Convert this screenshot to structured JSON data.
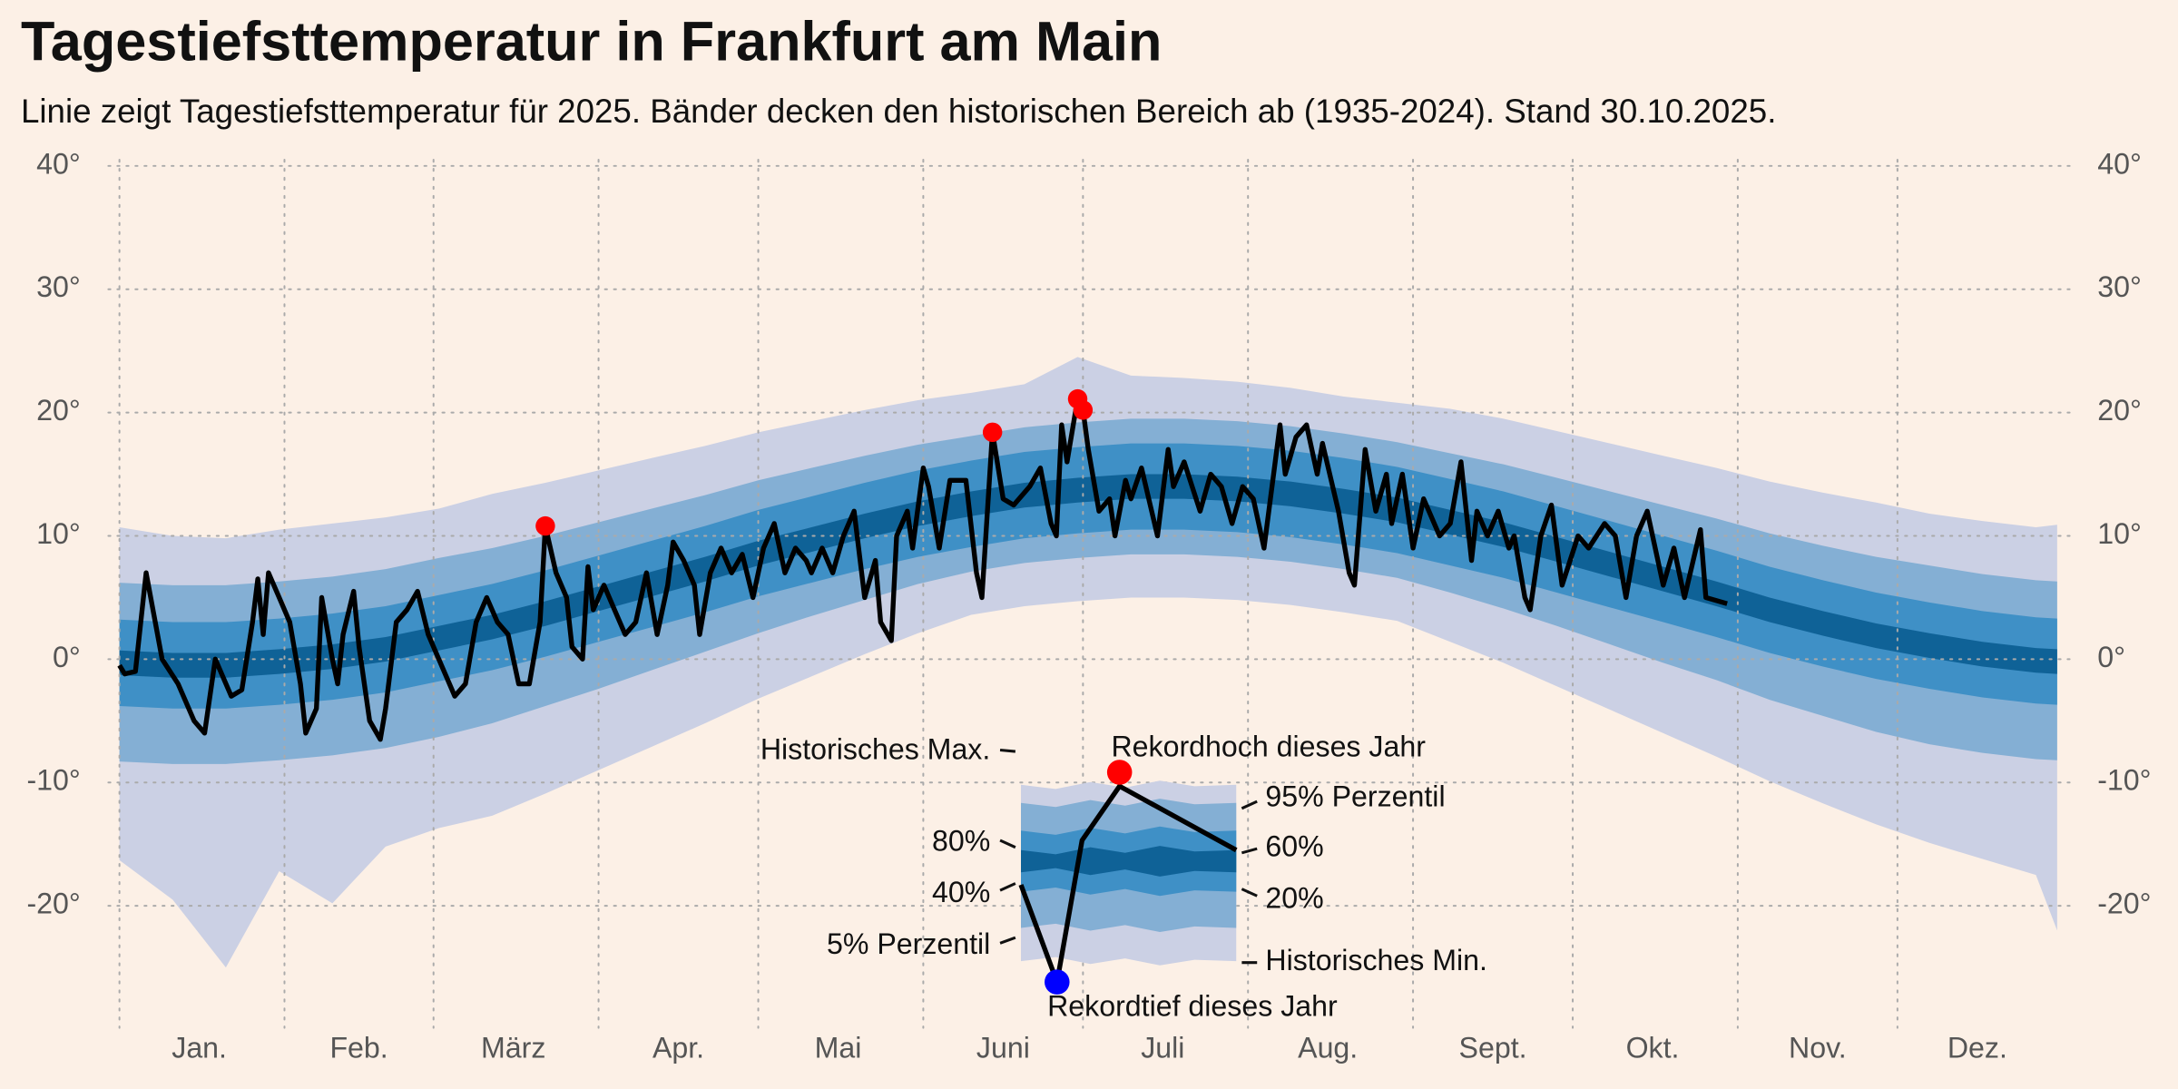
{
  "chart_data": {
    "type": "line",
    "title": "Tagestiefsttemperatur in Frankfurt am Main",
    "subtitle": "Linie zeigt Tagestiefsttemperatur für 2025. Bänder decken den historischen Bereich ab (1935-2024). Stand 30.10.2025.",
    "background": "#fcf0e6",
    "xlim": [
      1,
      365
    ],
    "ylim": [
      -29,
      40.5
    ],
    "xticks": [
      {
        "value": 16,
        "label": "Jan."
      },
      {
        "value": 46,
        "label": "Feb."
      },
      {
        "value": 75,
        "label": "März"
      },
      {
        "value": 106,
        "label": "Apr."
      },
      {
        "value": 136,
        "label": "Mai"
      },
      {
        "value": 167,
        "label": "Juni"
      },
      {
        "value": 197,
        "label": "Juli"
      },
      {
        "value": 228,
        "label": "Aug."
      },
      {
        "value": 259,
        "label": "Sept."
      },
      {
        "value": 289,
        "label": "Okt."
      },
      {
        "value": 320,
        "label": "Nov."
      },
      {
        "value": 350,
        "label": "Dez."
      }
    ],
    "x_grid": [
      1,
      32,
      60,
      91,
      121,
      152,
      182,
      213,
      244,
      274,
      305,
      335
    ],
    "yticks": [
      {
        "value": -20,
        "label": "-20°"
      },
      {
        "value": -10,
        "label": "-10°"
      },
      {
        "value": 0,
        "label": "0°"
      },
      {
        "value": 10,
        "label": "10°"
      },
      {
        "value": 20,
        "label": "20°"
      },
      {
        "value": 30,
        "label": "30°"
      },
      {
        "value": 40,
        "label": "40°"
      }
    ],
    "grid": true,
    "band_x": [
      1,
      11,
      21,
      31,
      41,
      51,
      61,
      71,
      81,
      91,
      101,
      111,
      121,
      131,
      141,
      151,
      161,
      171,
      181,
      191,
      201,
      211,
      221,
      231,
      241,
      251,
      261,
      271,
      281,
      291,
      301,
      311,
      321,
      331,
      341,
      351,
      361,
      365
    ],
    "bands": [
      {
        "color": "#cbd0e4",
        "lower": [
          -16.3,
          -19.5,
          -25.0,
          -17.2,
          -19.8,
          -15.2,
          -13.7,
          -12.7,
          -10.9,
          -9.0,
          -7.1,
          -5.2,
          -3.2,
          -1.4,
          0.4,
          2.1,
          3.6,
          4.3,
          4.7,
          5.0,
          5.0,
          4.8,
          4.4,
          3.8,
          3.1,
          1.4,
          -0.3,
          -2.2,
          -4.1,
          -6.0,
          -7.9,
          -9.9,
          -11.7,
          -13.4,
          -14.9,
          -16.2,
          -17.5,
          -22.0
        ],
        "upper": [
          10.7,
          10.0,
          9.8,
          10.5,
          11.0,
          11.5,
          12.2,
          13.4,
          14.3,
          15.3,
          16.3,
          17.3,
          18.4,
          19.3,
          20.2,
          21.0,
          21.6,
          22.3,
          24.5,
          23.0,
          22.8,
          22.5,
          22.0,
          21.3,
          20.8,
          20.3,
          19.5,
          18.5,
          17.5,
          16.5,
          15.5,
          14.4,
          13.5,
          12.7,
          11.8,
          11.2,
          10.7,
          10.9
        ]
      },
      {
        "color": "#84afd4",
        "lower": [
          -8.3,
          -8.5,
          -8.5,
          -8.2,
          -7.8,
          -7.2,
          -6.3,
          -5.2,
          -3.8,
          -2.4,
          -0.9,
          0.6,
          2.1,
          3.5,
          4.8,
          6.1,
          7.1,
          7.8,
          8.2,
          8.5,
          8.5,
          8.3,
          7.9,
          7.3,
          6.6,
          5.4,
          4.1,
          2.7,
          1.2,
          -0.3,
          -1.7,
          -3.3,
          -4.6,
          -5.9,
          -6.9,
          -7.6,
          -8.1,
          -8.2
        ],
        "upper": [
          6.2,
          6.0,
          6.0,
          6.3,
          6.7,
          7.3,
          8.2,
          9.0,
          10.0,
          11.1,
          12.2,
          13.3,
          14.5,
          15.5,
          16.5,
          17.4,
          18.1,
          18.8,
          19.2,
          19.5,
          19.5,
          19.3,
          18.9,
          18.3,
          17.6,
          16.7,
          15.8,
          14.7,
          13.6,
          12.5,
          11.4,
          10.2,
          9.2,
          8.3,
          7.6,
          6.9,
          6.4,
          6.3
        ]
      },
      {
        "color": "#3f90c6",
        "lower": [
          -3.8,
          -4.0,
          -4.0,
          -3.7,
          -3.3,
          -2.7,
          -1.8,
          -0.9,
          0.2,
          1.4,
          2.6,
          3.8,
          5.1,
          6.2,
          7.3,
          8.3,
          9.1,
          9.8,
          10.2,
          10.5,
          10.5,
          10.3,
          9.9,
          9.3,
          8.6,
          7.6,
          6.6,
          5.4,
          4.2,
          3.0,
          1.8,
          0.5,
          -0.6,
          -1.6,
          -2.4,
          -3.1,
          -3.6,
          -3.7
        ],
        "upper": [
          3.2,
          3.0,
          3.0,
          3.3,
          3.7,
          4.3,
          5.2,
          6.1,
          7.2,
          8.4,
          9.6,
          10.8,
          12.1,
          13.2,
          14.3,
          15.3,
          16.1,
          16.8,
          17.2,
          17.5,
          17.5,
          17.3,
          16.9,
          16.3,
          15.6,
          14.6,
          13.6,
          12.4,
          11.2,
          10.0,
          8.8,
          7.5,
          6.4,
          5.4,
          4.6,
          3.9,
          3.4,
          3.3
        ]
      },
      {
        "color": "#0f6297",
        "lower": [
          -1.3,
          -1.5,
          -1.5,
          -1.2,
          -0.8,
          -0.2,
          0.7,
          1.6,
          2.7,
          3.9,
          5.1,
          6.3,
          7.6,
          8.7,
          9.8,
          10.8,
          11.6,
          12.3,
          12.7,
          13.0,
          13.0,
          12.8,
          12.4,
          11.8,
          11.1,
          10.1,
          9.1,
          7.9,
          6.7,
          5.5,
          4.3,
          3.0,
          1.9,
          0.9,
          0.1,
          -0.6,
          -1.1,
          -1.2
        ],
        "upper": [
          0.7,
          0.5,
          0.5,
          0.8,
          1.2,
          1.8,
          2.7,
          3.6,
          4.7,
          5.9,
          7.1,
          8.3,
          9.6,
          10.7,
          11.8,
          12.8,
          13.6,
          14.3,
          14.7,
          15.0,
          15.0,
          14.8,
          14.4,
          13.8,
          13.1,
          12.1,
          11.1,
          9.9,
          8.7,
          7.5,
          6.3,
          5.0,
          3.9,
          2.9,
          2.1,
          1.4,
          0.9,
          0.8
        ]
      }
    ],
    "line": {
      "color": "#000000",
      "x": [
        1,
        2,
        4,
        6,
        9,
        12,
        15,
        17,
        19,
        22,
        24,
        26,
        27,
        28,
        29,
        31,
        33,
        35,
        36,
        38,
        39,
        41,
        42,
        43,
        45,
        46,
        48,
        50,
        51,
        53,
        55,
        57,
        59,
        61,
        64,
        66,
        68,
        70,
        72,
        74,
        76,
        78,
        80,
        81,
        83,
        85,
        86,
        88,
        89,
        90,
        92,
        94,
        96,
        98,
        100,
        102,
        104,
        105,
        107,
        109,
        110,
        112,
        114,
        116,
        118,
        120,
        122,
        124,
        126,
        128,
        130,
        131,
        133,
        135,
        137,
        139,
        141,
        143,
        144,
        146,
        147,
        149,
        150,
        152,
        153,
        155,
        157,
        160,
        162,
        163,
        165,
        167,
        169,
        172,
        174,
        176,
        177,
        178,
        179,
        181,
        182,
        183,
        185,
        187,
        188,
        190,
        191,
        193,
        196,
        198,
        199,
        201,
        204,
        206,
        208,
        210,
        212,
        214,
        216,
        219,
        220,
        222,
        224,
        226,
        227,
        230,
        232,
        233,
        235,
        237,
        239,
        240,
        242,
        244,
        246,
        249,
        251,
        253,
        255,
        256,
        258,
        260,
        262,
        263,
        265,
        266,
        268,
        270,
        272,
        275,
        277,
        280,
        282,
        284,
        286,
        288,
        291,
        293,
        295,
        298,
        299,
        303
      ],
      "values": [
        -0.5,
        -1.2,
        -1,
        7,
        0,
        -2,
        -5,
        -6,
        0,
        -3,
        -2.5,
        3,
        6.5,
        2,
        7,
        5,
        3,
        -2,
        -6,
        -4,
        5,
        0,
        -2,
        2,
        5.5,
        1,
        -5,
        -6.5,
        -4,
        3,
        4,
        5.5,
        2,
        0,
        -3,
        -2,
        3,
        5,
        3,
        2,
        -2,
        -2,
        3,
        10.8,
        7,
        5,
        1,
        0,
        7.5,
        4,
        6,
        4,
        2,
        3,
        7,
        2,
        6,
        9.5,
        8,
        6,
        2,
        7,
        9,
        7,
        8.5,
        5,
        9,
        11,
        7,
        9,
        8,
        7,
        9,
        7,
        10,
        12,
        5,
        8,
        3,
        1.5,
        10,
        12,
        9,
        15.5,
        14,
        9,
        14.5,
        14.5,
        7,
        5,
        18.4,
        13,
        12.5,
        14,
        15.5,
        11,
        10,
        19,
        16,
        21.1,
        20.2,
        17,
        12,
        13,
        10,
        14.5,
        13,
        15.5,
        10,
        17,
        14,
        16,
        12,
        15,
        14,
        11,
        14,
        13,
        9,
        19,
        15,
        18,
        19,
        15,
        17.5,
        12,
        7,
        6,
        17,
        12,
        15,
        11,
        15,
        9,
        13,
        10,
        11,
        16,
        8,
        12,
        10,
        12,
        9,
        10,
        5,
        4,
        10,
        12.5,
        6,
        10,
        9,
        11,
        10,
        5,
        10,
        12,
        6,
        9,
        5,
        10.5,
        5,
        4.5
      ]
    },
    "record_highs": {
      "color": "#ff0000",
      "x": [
        81,
        165,
        181,
        182
      ],
      "values": [
        10.8,
        18.4,
        21.1,
        20.2
      ]
    },
    "legend": {
      "record_low_color": "#0000ff",
      "max": "Historisches Max.",
      "record_high": "Rekordhoch dieses Jahr",
      "p95": "95% Perzentil",
      "p80": "80%",
      "p60": "60%",
      "p40": "40%",
      "p20": "20%",
      "p5": "5% Perzentil",
      "min": "Historisches Min.",
      "record_low": "Rekordtief dieses Jahr"
    }
  }
}
